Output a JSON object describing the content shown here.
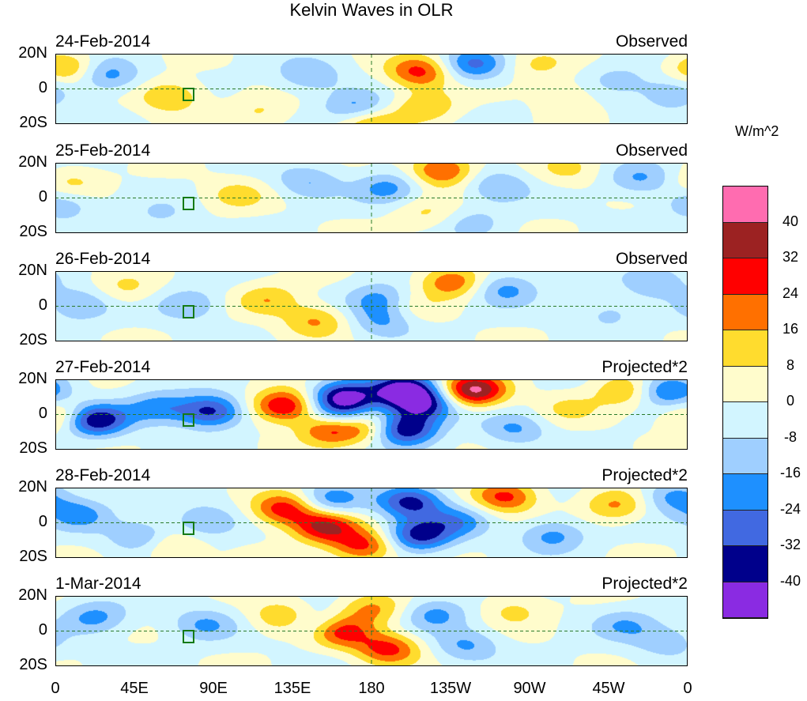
{
  "chart_data": {
    "type": "heatmap",
    "title": "Kelvin Waves in OLR",
    "units": "W/m^2",
    "x_ticks": [
      "0",
      "45E",
      "90E",
      "135E",
      "180",
      "135W",
      "90W",
      "45W",
      "0"
    ],
    "y_ticks": [
      "20N",
      "0",
      "20S"
    ],
    "lon_range": [
      0,
      360
    ],
    "lat_range": [
      -20,
      20
    ],
    "colorbar": {
      "labels": [
        "40",
        "32",
        "24",
        "16",
        "8",
        "0",
        "-8",
        "-16",
        "-24",
        "-32",
        "-40"
      ],
      "colors": [
        "#ff6cb0",
        "#9c2222",
        "#ff0000",
        "#ff7000",
        "#ffdc2e",
        "#fffccc",
        "#d2f5ff",
        "#9fcfff",
        "#1e90ff",
        "#4169e1",
        "#00008b",
        "#8a2be2"
      ]
    },
    "panels": [
      {
        "date": "24-Feb-2014",
        "kind": "Observed",
        "anomalies": [
          [
            7,
            12,
            20
          ],
          [
            29,
            8,
            -20
          ],
          [
            65,
            -4,
            18
          ],
          [
            117,
            -13,
            10
          ],
          [
            144,
            8,
            -15
          ],
          [
            171,
            -10,
            -18
          ],
          [
            207,
            10,
            28
          ],
          [
            238,
            14,
            -24
          ],
          [
            211,
            -10,
            16
          ],
          [
            274,
            14,
            10
          ],
          [
            320,
            5,
            -10
          ],
          [
            292,
            -3,
            8
          ],
          [
            351,
            -2,
            -15
          ],
          [
            180,
            -20,
            18
          ]
        ]
      },
      {
        "date": "25-Feb-2014",
        "kind": "Observed",
        "anomalies": [
          [
            9,
            9,
            12
          ],
          [
            4,
            -3,
            -14
          ],
          [
            103,
            2,
            12
          ],
          [
            144,
            9,
            -15
          ],
          [
            189,
            6,
            -18
          ],
          [
            220,
            16,
            28
          ],
          [
            211,
            -9,
            10
          ],
          [
            252,
            7,
            -15
          ],
          [
            333,
            11,
            -15
          ],
          [
            292,
            17,
            10
          ],
          [
            238,
            -14,
            -10
          ],
          [
            60,
            -10,
            -8
          ]
        ]
      },
      {
        "date": "26-Feb-2014",
        "kind": "Observed",
        "anomalies": [
          [
            13,
            1,
            -16
          ],
          [
            40,
            10,
            10
          ],
          [
            76,
            1,
            -15
          ],
          [
            121,
            4,
            16
          ],
          [
            148,
            -8,
            18
          ],
          [
            184,
            4,
            -18
          ],
          [
            187,
            -8,
            -16
          ],
          [
            225,
            14,
            24
          ],
          [
            256,
            10,
            -18
          ],
          [
            202,
            -1,
            8
          ],
          [
            342,
            14,
            -15
          ],
          [
            315,
            -4,
            -10
          ]
        ]
      },
      {
        "date": "27-Feb-2014",
        "kind": "Projected*2",
        "anomalies": [
          [
            4,
            -1,
            20
          ],
          [
            22,
            -3,
            -42
          ],
          [
            58,
            4,
            -20
          ],
          [
            88,
            2,
            -34
          ],
          [
            130,
            5,
            35
          ],
          [
            157,
            -8,
            30
          ],
          [
            164,
            10,
            -42
          ],
          [
            162,
            -1,
            -20
          ],
          [
            198,
            14,
            -42
          ],
          [
            209,
            6,
            -34
          ],
          [
            198,
            -8,
            -42
          ],
          [
            238,
            14,
            42
          ],
          [
            180,
            -7,
            20
          ],
          [
            261,
            -8,
            -16
          ],
          [
            324,
            14,
            18
          ],
          [
            349,
            14,
            -28
          ],
          [
            292,
            4,
            10
          ]
        ]
      },
      {
        "date": "28-Feb-2014",
        "kind": "Projected*2",
        "anomalies": [
          [
            13,
            5,
            -18
          ],
          [
            49,
            -8,
            -18
          ],
          [
            85,
            1,
            -16
          ],
          [
            65,
            -13,
            16
          ],
          [
            130,
            8,
            30
          ],
          [
            153,
            -2,
            34
          ],
          [
            157,
            13,
            -20
          ],
          [
            175,
            -13,
            28
          ],
          [
            202,
            12,
            -34
          ],
          [
            207,
            -7,
            -34
          ],
          [
            229,
            1,
            -18
          ],
          [
            256,
            15,
            28
          ],
          [
            283,
            -7,
            -18
          ],
          [
            319,
            10,
            18
          ],
          [
            351,
            15,
            -18
          ]
        ]
      },
      {
        "date": "1-Mar-2014",
        "kind": "Projected*2",
        "anomalies": [
          [
            22,
            8,
            -18
          ],
          [
            85,
            4,
            -16
          ],
          [
            130,
            8,
            18
          ],
          [
            148,
            4,
            -16
          ],
          [
            162,
            0,
            30
          ],
          [
            180,
            13,
            18
          ],
          [
            189,
            -10,
            28
          ],
          [
            216,
            10,
            -18
          ],
          [
            234,
            -8,
            -16
          ],
          [
            261,
            12,
            12
          ],
          [
            324,
            4,
            -14
          ],
          [
            347,
            -6,
            -12
          ]
        ]
      }
    ]
  }
}
